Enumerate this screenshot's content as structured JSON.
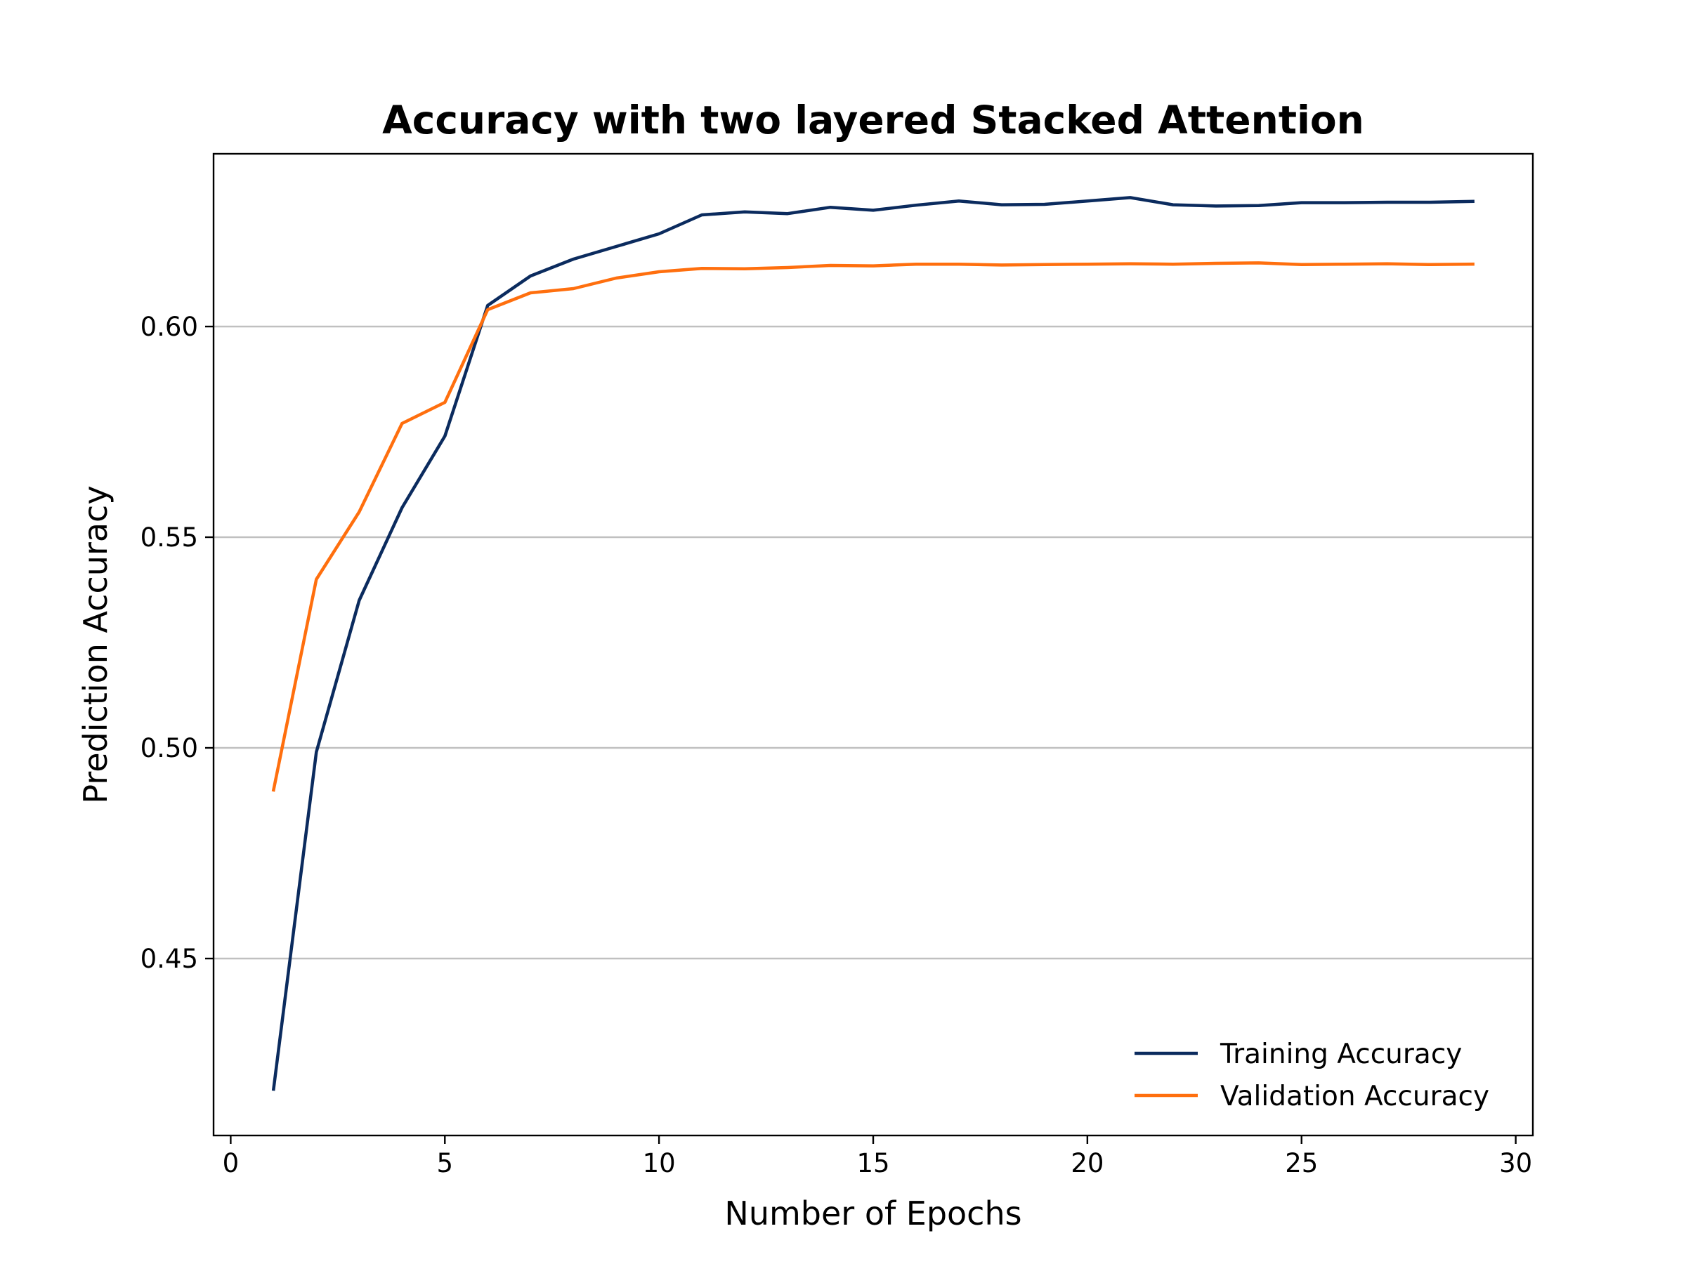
{
  "chart_data": {
    "type": "line",
    "title": "Accuracy with two layered Stacked Attention",
    "xlabel": "Number of Epochs",
    "ylabel": "Prediction Accuracy",
    "xlim": [
      -0.4,
      30.4
    ],
    "ylim": [
      0.408,
      0.641
    ],
    "xticks": [
      0,
      5,
      10,
      15,
      20,
      25,
      30
    ],
    "xtick_labels": [
      "0",
      "5",
      "10",
      "15",
      "20",
      "25",
      "30"
    ],
    "yticks": [
      0.45,
      0.5,
      0.55,
      0.6
    ],
    "ytick_labels": [
      "0.45",
      "0.50",
      "0.55",
      "0.60"
    ],
    "grid": "horizontal",
    "legend_position": "lower-right",
    "x": [
      1,
      2,
      3,
      4,
      5,
      6,
      7,
      8,
      9,
      10,
      11,
      12,
      13,
      14,
      15,
      16,
      17,
      18,
      19,
      20,
      21,
      22,
      23,
      24,
      25,
      26,
      27,
      28,
      29
    ],
    "series": [
      {
        "name": "Training Accuracy",
        "color": "#0b2b5e",
        "values": [
          0.419,
          0.499,
          0.535,
          0.557,
          0.574,
          0.605,
          0.612,
          0.616,
          0.619,
          0.622,
          0.6265,
          0.6272,
          0.6268,
          0.6283,
          0.6276,
          0.6288,
          0.6298,
          0.6289,
          0.629,
          0.6298,
          0.6306,
          0.6289,
          0.6286,
          0.6287,
          0.6294,
          0.6294,
          0.6295,
          0.6295,
          0.6297
        ]
      },
      {
        "name": "Validation Accuracy",
        "color": "#ff6f0e",
        "values": [
          0.49,
          0.54,
          0.556,
          0.577,
          0.582,
          0.604,
          0.608,
          0.609,
          0.6115,
          0.613,
          0.6138,
          0.6137,
          0.614,
          0.6145,
          0.6144,
          0.6148,
          0.6148,
          0.6146,
          0.6147,
          0.6148,
          0.6149,
          0.6148,
          0.615,
          0.6151,
          0.6147,
          0.6148,
          0.6149,
          0.6147,
          0.6148
        ]
      }
    ]
  }
}
